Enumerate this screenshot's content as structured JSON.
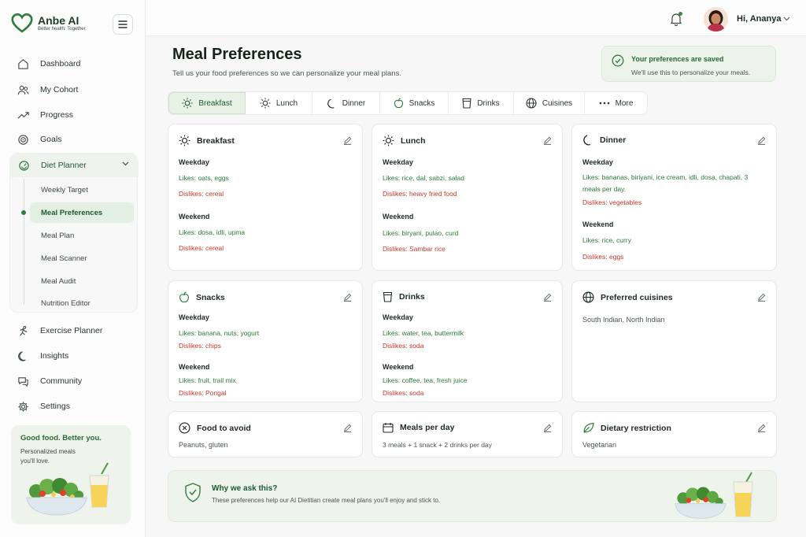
{
  "brand": {
    "name": "Anbe AI",
    "tagline": "Better health. Together."
  },
  "nav": {
    "dashboard": "Dashboard",
    "cohort": "My Cohort",
    "progress": "Progress",
    "goals": "Goals",
    "diet_planner": "Diet Planner",
    "exercise": "Exercise Planner",
    "insights": "Insights",
    "community": "Community",
    "settings": "Settings"
  },
  "diet_sub": [
    "Weekly Target",
    "Meal Preferences",
    "Meal Plan",
    "Meal Scanner",
    "Meal Audit",
    "Nutrition Editor"
  ],
  "promo": {
    "title": "Good food. Better you.",
    "subtitle": "Personalized meals you'll love."
  },
  "user": {
    "greeting": "Hi, Ananya"
  },
  "page": {
    "title": "Meal Preferences",
    "subtitle": "Tell us your food preferences so we can personalize your meal plans."
  },
  "toast": {
    "title": "Your preferences are saved",
    "subtitle": "We'll use this to personalize your meals."
  },
  "tabs": [
    "Breakfast",
    "Lunch",
    "Dinner",
    "Snacks",
    "Drinks",
    "Cuisines",
    "More"
  ],
  "cards": {
    "breakfast": {
      "title": "Breakfast",
      "weekday": "Weekday",
      "wd_likes": "Likes: oats, eggs",
      "wd_dislikes": "Dislikes: cereal",
      "weekend": "Weekend",
      "we_likes": "Likes: dosa, idli, upma",
      "we_dislikes": "Dislikes: cereal"
    },
    "lunch": {
      "title": "Lunch",
      "weekday": "Weekday",
      "wd_likes": "Likes: rice, dal, sabzi, salad",
      "wd_dislikes": "Dislikes: heavy fried food",
      "weekend": "Weekend",
      "we_likes": "Likes: biryani, pulao, curd",
      "we_dislikes": "Dislikes: Sambar rice"
    },
    "dinner": {
      "title": "Dinner",
      "weekday": "Weekday",
      "wd_likes": "Likes: bananas, biriyani, ice cream, idli, dosa, chapati, 3 meals per day.",
      "wd_dislikes": "Dislikes: vegetables",
      "weekend": "Weekend",
      "we_likes": "Likes: rice, curry",
      "we_dislikes": "Dislikes: eggs"
    },
    "snacks": {
      "title": "Snacks",
      "weekday": "Weekday",
      "wd_likes": "Likes: banana, nuts, yogurt",
      "wd_dislikes": "Dislikes: chips",
      "weekend": "Weekend",
      "we_likes": "Likes: fruit, trail mix",
      "we_dislikes": "Dislikes: Pongal"
    },
    "drinks": {
      "title": "Drinks",
      "weekday": "Weekday",
      "wd_likes": "Likes: water, tea, buttermilk",
      "wd_dislikes": "Dislikes: soda",
      "weekend": "Weekend",
      "we_likes": "Likes: coffee, tea, fresh juice",
      "we_dislikes": "Dislikes: soda"
    },
    "cuisines": {
      "title": "Preferred cuisines",
      "value": "South Indian, North Indian"
    },
    "avoid": {
      "title": "Food to avoid",
      "value": "Peanuts, gluten"
    },
    "meals": {
      "title": "Meals per day",
      "value": "3 meals + 1 snack + 2 drinks per day"
    },
    "restriction": {
      "title": "Dietary restriction",
      "value": "Vegetarian"
    }
  },
  "why": {
    "title": "Why we ask this?",
    "subtitle": "These preferences help our AI Dietitian create meal plans you'll enjoy and stick to."
  },
  "colors": {
    "accent": "#2f7d3f",
    "like": "#2a7a3a",
    "dislike": "#c0392b"
  }
}
